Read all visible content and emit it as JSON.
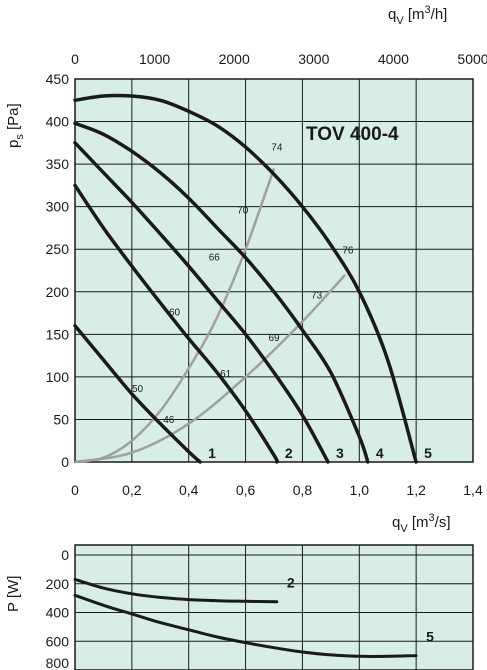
{
  "colors": {
    "plot_bg": "#d8ece8",
    "grid": "#1a1a1a",
    "curve": "#1a1a1a",
    "efficiency_curve": "#a0a0a0"
  },
  "chart_data": [
    {
      "type": "line",
      "model_label": "TOV 400-4",
      "xlabel": "qv [m3/s]",
      "ylabel": "ps [Pa]",
      "x2label": "qv [m3/h]",
      "xlim": [
        0,
        1.4
      ],
      "ylim": [
        0,
        450
      ],
      "x2lim": [
        0,
        5000
      ],
      "x_ticks": [
        "0",
        "0,2",
        "0,4",
        "0,6",
        "0,8",
        "1,0",
        "1,2",
        "1,4"
      ],
      "y_ticks": [
        "0",
        "50",
        "100",
        "150",
        "200",
        "250",
        "300",
        "350",
        "400",
        "450"
      ],
      "x2_ticks": [
        "0",
        "1000",
        "2000",
        "3000",
        "4000",
        "5000"
      ],
      "grid": true,
      "series": [
        {
          "name": "1",
          "x": [
            0,
            0.1,
            0.2,
            0.3,
            0.4,
            0.44
          ],
          "y": [
            160,
            120,
            80,
            45,
            12,
            0
          ]
        },
        {
          "name": "2",
          "x": [
            0,
            0.1,
            0.2,
            0.3,
            0.4,
            0.5,
            0.6,
            0.7,
            0.71
          ],
          "y": [
            325,
            275,
            230,
            187,
            145,
            105,
            60,
            8,
            0
          ]
        },
        {
          "name": "3",
          "x": [
            0,
            0.1,
            0.2,
            0.3,
            0.4,
            0.5,
            0.6,
            0.7,
            0.8,
            0.89
          ],
          "y": [
            375,
            340,
            305,
            268,
            230,
            190,
            150,
            105,
            55,
            0
          ]
        },
        {
          "name": "4",
          "x": [
            0,
            0.1,
            0.2,
            0.3,
            0.4,
            0.5,
            0.6,
            0.7,
            0.8,
            0.9,
            1.0,
            1.03
          ],
          "y": [
            398,
            385,
            365,
            340,
            310,
            275,
            240,
            200,
            155,
            105,
            30,
            0
          ]
        },
        {
          "name": "5",
          "x": [
            0,
            0.1,
            0.2,
            0.3,
            0.4,
            0.5,
            0.6,
            0.7,
            0.8,
            0.9,
            1.0,
            1.1,
            1.2
          ],
          "y": [
            425,
            430,
            430,
            425,
            412,
            395,
            370,
            338,
            300,
            255,
            200,
            120,
            0
          ]
        }
      ],
      "efficiency_curves": [
        {
          "label": "74",
          "x": [
            0,
            0.1,
            0.2,
            0.3,
            0.4,
            0.5,
            0.6,
            0.7
          ],
          "y": [
            0,
            5,
            25,
            60,
            110,
            170,
            250,
            345
          ]
        },
        {
          "label": "73",
          "x": [
            0,
            0.2,
            0.4,
            0.6,
            0.8,
            0.95
          ],
          "y": [
            0,
            11,
            45,
            100,
            165,
            220
          ]
        }
      ],
      "efficiency_labels": [
        {
          "text": "74",
          "x": 0.71,
          "y": 366
        },
        {
          "text": "70",
          "x": 0.59,
          "y": 292
        },
        {
          "text": "66",
          "x": 0.49,
          "y": 237
        },
        {
          "text": "60",
          "x": 0.35,
          "y": 172
        },
        {
          "text": "50",
          "x": 0.22,
          "y": 82
        },
        {
          "text": "46",
          "x": 0.33,
          "y": 46
        },
        {
          "text": "61",
          "x": 0.53,
          "y": 100
        },
        {
          "text": "69",
          "x": 0.7,
          "y": 142
        },
        {
          "text": "73",
          "x": 0.85,
          "y": 192
        },
        {
          "text": "76",
          "x": 0.96,
          "y": 245
        }
      ]
    },
    {
      "type": "line",
      "ylabel": "P [W]",
      "ylim": [
        0,
        800
      ],
      "y_reversed": true,
      "y_ticks": [
        "0",
        "200",
        "400",
        "600",
        "800"
      ],
      "grid": true,
      "series": [
        {
          "name": "2",
          "x": [
            0,
            0.1,
            0.2,
            0.3,
            0.4,
            0.5,
            0.6,
            0.71
          ],
          "y": [
            170,
            230,
            270,
            295,
            310,
            318,
            322,
            325
          ]
        },
        {
          "name": "5",
          "x": [
            0,
            0.1,
            0.2,
            0.3,
            0.4,
            0.5,
            0.6,
            0.7,
            0.8,
            0.9,
            1.0,
            1.1,
            1.2
          ],
          "y": [
            280,
            350,
            410,
            470,
            520,
            570,
            610,
            645,
            675,
            695,
            705,
            705,
            700
          ]
        }
      ]
    }
  ]
}
